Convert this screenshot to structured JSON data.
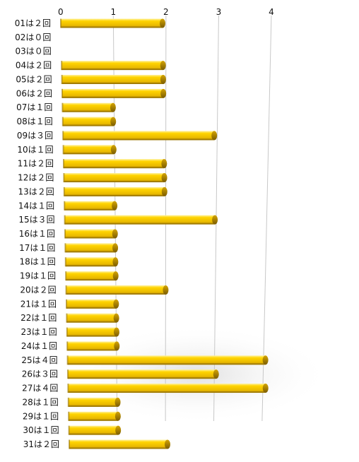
{
  "chart_data": {
    "type": "bar",
    "orientation": "horizontal",
    "style": "3d",
    "bar_color": "#f2c200",
    "categories": [
      "01は２回",
      "02は０回",
      "03は０回",
      "04は２回",
      "05は２回",
      "06は２回",
      "07は１回",
      "08は１回",
      "09は３回",
      "10は１回",
      "11は２回",
      "12は２回",
      "13は２回",
      "14は１回",
      "15は３回",
      "16は１回",
      "17は１回",
      "18は１回",
      "19は１回",
      "20は２回",
      "21は１回",
      "22は１回",
      "23は１回",
      "24は１回",
      "25は４回",
      "26は３回",
      "27は４回",
      "28は１回",
      "29は１回",
      "30は１回",
      "31は２回"
    ],
    "values": [
      2,
      0,
      0,
      2,
      2,
      2,
      1,
      1,
      3,
      1,
      2,
      2,
      2,
      1,
      3,
      1,
      1,
      1,
      1,
      2,
      1,
      1,
      1,
      1,
      4,
      3,
      4,
      1,
      1,
      1,
      2
    ],
    "xlim": [
      0,
      4
    ],
    "x_ticks": [
      "0",
      "1",
      "2",
      "3",
      "4"
    ],
    "x_axis_position": "top",
    "grid": true
  }
}
